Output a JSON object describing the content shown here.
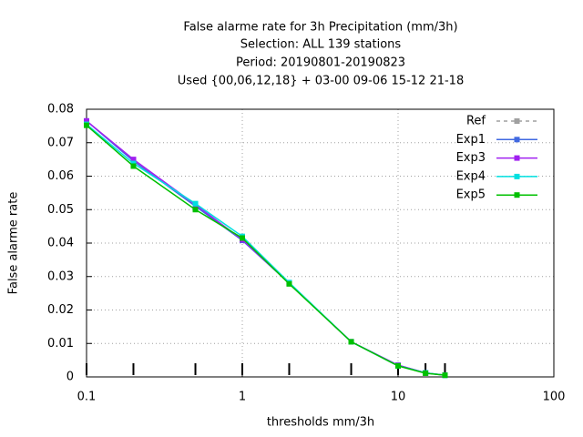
{
  "chart_data": {
    "type": "line",
    "title": [
      "False alarme rate  for 3h Precipitation (mm/3h)",
      "Selection: ALL    139 stations",
      "Period: 20190801-20190823",
      "Used {00,06,12,18} + 03-00 09-06 15-12 21-18"
    ],
    "xlabel": "thresholds mm/3h",
    "ylabel": "False alarme rate",
    "x": [
      0.1,
      0.2,
      0.5,
      1,
      2,
      5,
      10,
      15,
      20
    ],
    "xlim": [
      0.1,
      100
    ],
    "xticks": [
      0.1,
      1,
      10,
      100
    ],
    "xscale": "log",
    "ylim": [
      0,
      0.08
    ],
    "yticks": [
      0,
      0.01,
      0.02,
      0.03,
      0.04,
      0.05,
      0.06,
      0.07,
      0.08
    ],
    "grid": true,
    "legend": "top-right",
    "series": [
      {
        "name": "Ref",
        "color": "#a0a0a0",
        "dashed": true,
        "values": [
          null,
          null,
          null,
          null,
          null,
          null,
          null,
          null,
          null
        ]
      },
      {
        "name": "Exp1",
        "color": "#4169e1",
        "values": [
          0.0765,
          0.0645,
          0.051,
          0.0408,
          0.028,
          0.0105,
          0.0035,
          0.0012,
          0.0005
        ]
      },
      {
        "name": "Exp3",
        "color": "#a020f0",
        "values": [
          0.0765,
          0.065,
          0.0515,
          0.041,
          0.028,
          0.0105,
          0.0035,
          0.0012,
          0.0005
        ]
      },
      {
        "name": "Exp4",
        "color": "#00e0e0",
        "values": [
          0.0755,
          0.0638,
          0.0518,
          0.042,
          0.0282,
          0.0105,
          0.0033,
          0.0012,
          0.0005
        ]
      },
      {
        "name": "Exp5",
        "color": "#00c000",
        "values": [
          0.0752,
          0.063,
          0.05,
          0.0415,
          0.0278,
          0.0105,
          0.0033,
          0.0011,
          0.0005
        ]
      }
    ]
  }
}
